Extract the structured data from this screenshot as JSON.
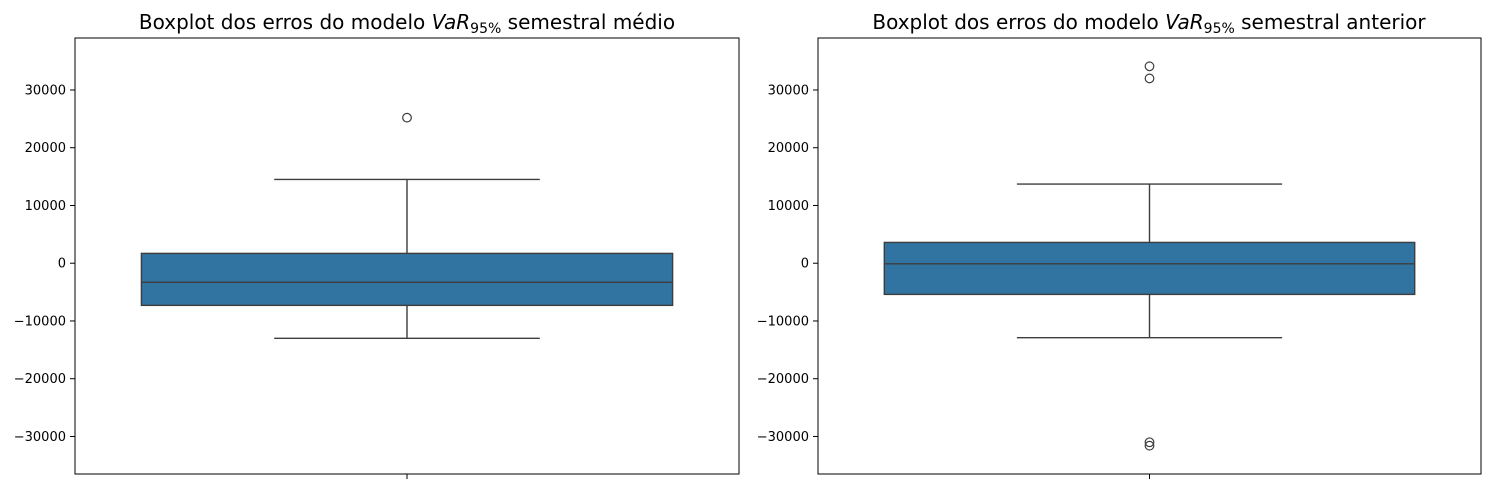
{
  "chart_data": [
    {
      "type": "boxplot",
      "title": {
        "prefix": "Boxplot dos erros do modelo ",
        "var": "VaR",
        "sub": "95%",
        "suffix": " semestral médio"
      },
      "ylim": [
        -36500,
        39000
      ],
      "yticks": [
        -30000,
        -20000,
        -10000,
        0,
        10000,
        20000,
        30000
      ],
      "ytick_labels": [
        "−30000",
        "−20000",
        "−10000",
        "0",
        "10000",
        "20000",
        "30000"
      ],
      "grid": false,
      "box": {
        "whisker_low": -13000,
        "q1": -7300,
        "median": -3300,
        "q3": 1700,
        "whisker_high": 14500
      },
      "outliers": [
        25200
      ],
      "color": "#3274a1",
      "line_color": "#3d3d3d"
    },
    {
      "type": "boxplot",
      "title": {
        "prefix": "Boxplot dos erros do modelo ",
        "var": "VaR",
        "sub": "95%",
        "suffix": " semestral anterior"
      },
      "ylim": [
        -36500,
        39000
      ],
      "yticks": [
        -30000,
        -20000,
        -10000,
        0,
        10000,
        20000,
        30000
      ],
      "ytick_labels": [
        "−30000",
        "−20000",
        "−10000",
        "0",
        "10000",
        "20000",
        "30000"
      ],
      "grid": false,
      "box": {
        "whisker_low": -12900,
        "q1": -5400,
        "median": -100,
        "q3": 3600,
        "whisker_high": 13700
      },
      "outliers": [
        34100,
        32000,
        -31000,
        -31600
      ],
      "color": "#3274a1",
      "line_color": "#3d3d3d"
    }
  ]
}
